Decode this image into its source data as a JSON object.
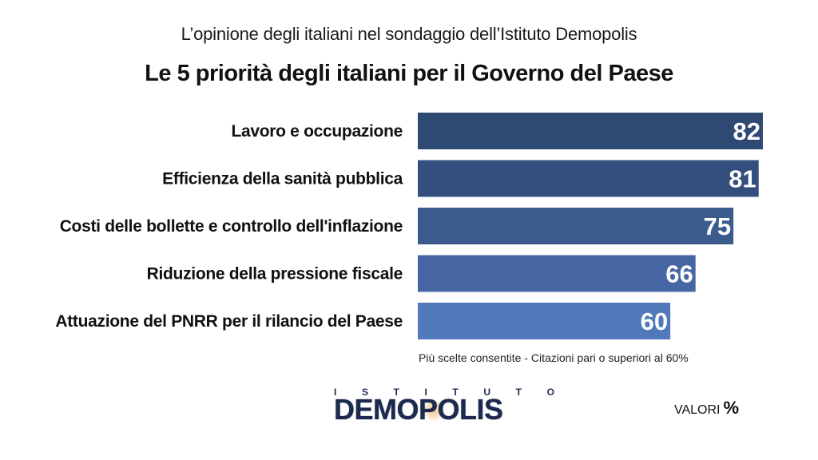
{
  "header": {
    "subtitle": "L’opinione degli italiani nel sondaggio dell’Istituto Demopolis",
    "title": "Le 5 priorità degli italiani per il Governo del Paese"
  },
  "chart_data": {
    "type": "bar",
    "orientation": "horizontal",
    "title": "Le 5 priorità degli italiani per il Governo del Paese",
    "categories": [
      "Lavoro e occupazione",
      "Efficienza della sanità pubblica",
      "Costi delle bollette e controllo dell'inflazione",
      "Riduzione della pressione fiscale",
      "Attuazione del PNRR per il rilancio del Paese"
    ],
    "values": [
      82,
      81,
      75,
      66,
      60
    ],
    "colors": [
      "#2f4a72",
      "#344f7d",
      "#3c5b8d",
      "#4767a4",
      "#5079bc"
    ],
    "xlim": [
      0,
      82
    ],
    "grid": false,
    "xlabel": "",
    "ylabel": ""
  },
  "footer": {
    "note": "Più scelte consentite - Citazioni pari o superiori al 60%",
    "logo_top_letters": [
      "I",
      "S",
      "T",
      "I",
      "T",
      "U",
      "T",
      "O"
    ],
    "logo_main": "DEMOPOLIS",
    "valori_label": "VALORI",
    "valori_unit": "%"
  }
}
